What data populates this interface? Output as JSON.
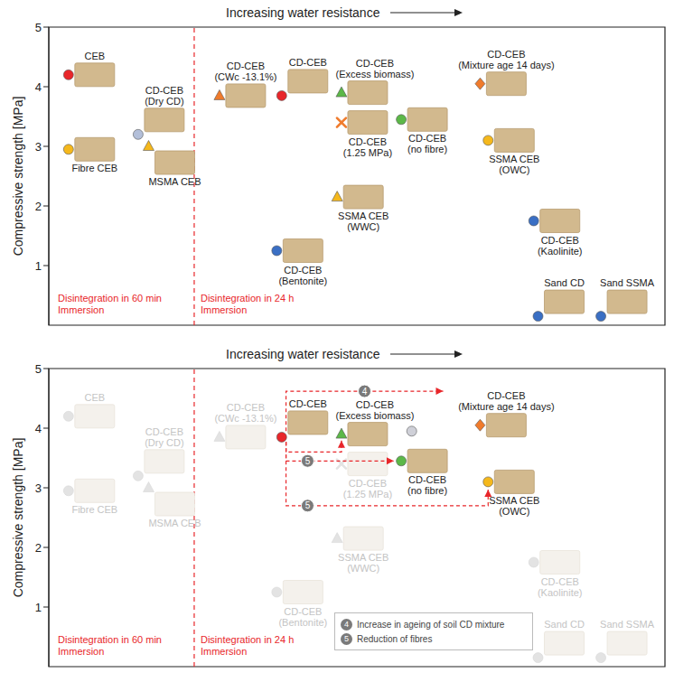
{
  "chart_data": [
    {
      "type": "scatter",
      "title": "Increasing water resistance",
      "ylabel": "Compressive strength [MPa]",
      "xlim": [
        0,
        100
      ],
      "ylim": [
        0,
        5
      ],
      "yticks": [
        1,
        2,
        3,
        4,
        5
      ],
      "tick_labels": "y",
      "vlines": [
        {
          "x": 23.6,
          "color": "#e8262a",
          "line_style": "dashed"
        }
      ],
      "annotations": [
        {
          "text": "Disintegration in 60 min Immersion",
          "color": "#e8262a"
        },
        {
          "text": "Disintegration in 24 h Immersion",
          "color": "#e8262a"
        }
      ],
      "points": [
        {
          "label": "CEB",
          "x": 3.2,
          "y": 4.2,
          "color": "#e8262a",
          "marker": "circle"
        },
        {
          "label": "Fibre CEB",
          "x": 3.2,
          "y": 2.95,
          "color": "#f5b81c",
          "marker": "circle"
        },
        {
          "label": "CD-CEB (Dry CD)",
          "x": 14.5,
          "y": 3.2,
          "color": "#b3bfd9",
          "marker": "circle"
        },
        {
          "label": "MSMA CEB",
          "x": 16.2,
          "y": 3.0,
          "color": "#f5b81c",
          "marker": "triangle"
        },
        {
          "label": "CD-CEB (CWc -13.1%)",
          "x": 27.7,
          "y": 3.85,
          "color": "#f07b2c",
          "marker": "triangle"
        },
        {
          "label": "CD-CEB",
          "x": 37.8,
          "y": 3.85,
          "color": "#e8262a",
          "marker": "circle"
        },
        {
          "label": "CD-CEB (Excess biomass)",
          "x": 47.5,
          "y": 3.9,
          "color": "#5cb848",
          "marker": "triangle"
        },
        {
          "label": "CD-CEB (1.25 MPa)",
          "x": 47.5,
          "y": 3.4,
          "color": "#f07b2c",
          "marker": "cross"
        },
        {
          "label": "CD-CEB (no fibre)",
          "x": 57.2,
          "y": 3.45,
          "color": "#5cb848",
          "marker": "circle"
        },
        {
          "label": "CD-CEB (Mixture age 14 days)",
          "x": 70,
          "y": 4.05,
          "color": "#f07b2c",
          "marker": "diamond"
        },
        {
          "label": "SSMA CEB (OWC)",
          "x": 71.3,
          "y": 3.1,
          "color": "#f5b81c",
          "marker": "circle"
        },
        {
          "label": "SSMA CEB (WWC)",
          "x": 46.8,
          "y": 2.15,
          "color": "#f5b81c",
          "marker": "triangle"
        },
        {
          "label": "CD-CEB (Bentonite)",
          "x": 37,
          "y": 1.25,
          "color": "#3a6fc4",
          "marker": "circle"
        },
        {
          "label": "CD-CEB (Kaolinite)",
          "x": 78.7,
          "y": 1.75,
          "color": "#3a6fc4",
          "marker": "circle"
        },
        {
          "label": "Sand CD",
          "x": 79.4,
          "y": 0.15,
          "color": "#3a6fc4",
          "marker": "circle"
        },
        {
          "label": "Sand SSMA",
          "x": 89.6,
          "y": 0.15,
          "color": "#3a6fc4",
          "marker": "circle"
        }
      ],
      "arrows": [],
      "notes": []
    },
    {
      "type": "scatter",
      "title": "Increasing water resistance",
      "ylabel": "Compressive strength [MPa]",
      "xlim": [
        0,
        100
      ],
      "ylim": [
        0,
        5
      ],
      "yticks": [
        1,
        2,
        3,
        4,
        5
      ],
      "tick_labels": "y",
      "vlines": [
        {
          "x": 23.6,
          "color": "#e8262a",
          "line_style": "dashed"
        }
      ],
      "annotations": [
        {
          "text": "Disintegration in 60 min Immersion",
          "color": "#e8262a"
        },
        {
          "text": "Disintegration in 24 h Immersion",
          "color": "#e8262a"
        }
      ],
      "points": [
        {
          "label": "CEB",
          "x": 3.2,
          "y": 4.2,
          "color": "#e3e3e3",
          "marker": "circle"
        },
        {
          "label": "Fibre CEB",
          "x": 3.2,
          "y": 2.95,
          "color": "#e3e3e3",
          "marker": "circle"
        },
        {
          "label": "CD-CEB (Dry CD)",
          "x": 14.5,
          "y": 3.2,
          "color": "#e3e3e3",
          "marker": "circle"
        },
        {
          "label": "MSMA CEB",
          "x": 16.2,
          "y": 3.0,
          "color": "#e3e3e3",
          "marker": "triangle"
        },
        {
          "label": "CD-CEB (CWc -13.1%)",
          "x": 27.7,
          "y": 3.85,
          "color": "#e3e3e3",
          "marker": "triangle"
        },
        {
          "label": "CD-CEB",
          "x": 37.8,
          "y": 3.85,
          "color": "#e8262a",
          "marker": "circle"
        },
        {
          "label": "CD-CEB (Excess biomass)",
          "x": 47.5,
          "y": 3.9,
          "color": "#5cb848",
          "marker": "triangle"
        },
        {
          "label": "CD-CEB (1.25 MPa)",
          "x": 47.5,
          "y": 3.4,
          "color": "#e3e3e3",
          "marker": "cross"
        },
        {
          "label": "CD-CEB (no fibre)",
          "x": 57.2,
          "y": 3.45,
          "color": "#5cb848",
          "marker": "circle"
        },
        {
          "label": "CD-CEB (Mixture age 14 days)",
          "x": 70,
          "y": 4.05,
          "color": "#f07b2c",
          "marker": "diamond"
        },
        {
          "label": "SSMA CEB (OWC)",
          "x": 71.3,
          "y": 3.1,
          "color": "#f5b81c",
          "marker": "circle"
        },
        {
          "label": "SSMA CEB (WWC)",
          "x": 46.8,
          "y": 2.15,
          "color": "#e3e3e3",
          "marker": "triangle"
        },
        {
          "label": "CD-CEB (Bentonite)",
          "x": 37,
          "y": 1.25,
          "color": "#e3e3e3",
          "marker": "circle"
        },
        {
          "label": "CD-CEB (Kaolinite)",
          "x": 78.7,
          "y": 1.75,
          "color": "#e3e3e3",
          "marker": "circle"
        },
        {
          "label": "Sand CD",
          "x": 79.4,
          "y": 0.15,
          "color": "#e3e3e3",
          "marker": "circle"
        },
        {
          "label": "Sand SSMA",
          "x": 89.6,
          "y": 0.15,
          "color": "#e3e3e3",
          "marker": "circle"
        },
        {
          "label": null,
          "x": 58.9,
          "y": 3.95,
          "color": "#cfd0d8",
          "marker": "circle"
        }
      ],
      "arrows": [
        {
          "label": "4",
          "from": 5,
          "to": 9,
          "color": "#e8262a",
          "line_style": "dashed"
        },
        {
          "label": null,
          "from": 5,
          "to": 6,
          "color": "#e8262a",
          "line_style": "dashed"
        },
        {
          "label": "5",
          "from": 5,
          "to": 8,
          "color": "#e8262a",
          "line_style": "dashed"
        },
        {
          "label": "5",
          "from": 5,
          "to": 10,
          "color": "#e8262a",
          "line_style": "dashed"
        }
      ],
      "notes": [
        {
          "label": "4",
          "text": "Increase in ageing of soil CD mixture"
        },
        {
          "label": "5",
          "text": "Reduction of fibres"
        }
      ]
    }
  ]
}
